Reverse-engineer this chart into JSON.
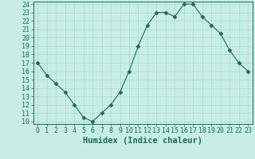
{
  "x": [
    0,
    1,
    2,
    3,
    4,
    5,
    6,
    7,
    8,
    9,
    10,
    11,
    12,
    13,
    14,
    15,
    16,
    17,
    18,
    19,
    20,
    21,
    22,
    23
  ],
  "y": [
    17,
    15.5,
    14.5,
    13.5,
    12,
    10.5,
    10,
    11,
    12,
    13.5,
    16,
    19,
    21.5,
    23,
    23,
    22.5,
    24,
    24,
    22.5,
    21.5,
    20.5,
    18.5,
    17,
    16
  ],
  "xlabel": "Humidex (Indice chaleur)",
  "ylim": [
    10,
    24
  ],
  "xlim": [
    -0.5,
    23.5
  ],
  "yticks": [
    10,
    11,
    12,
    13,
    14,
    15,
    16,
    17,
    18,
    19,
    20,
    21,
    22,
    23,
    24
  ],
  "xticks": [
    0,
    1,
    2,
    3,
    4,
    5,
    6,
    7,
    8,
    9,
    10,
    11,
    12,
    13,
    14,
    15,
    16,
    17,
    18,
    19,
    20,
    21,
    22,
    23
  ],
  "line_color": "#1a6b5a",
  "marker": "D",
  "marker_size": 2.5,
  "bg_color": "#c8ece6",
  "grid_color": "#a8d8d0",
  "tick_color": "#1a6b5a",
  "label_color": "#1a6b5a",
  "xlabel_fontsize": 7.5,
  "tick_fontsize": 6.0
}
